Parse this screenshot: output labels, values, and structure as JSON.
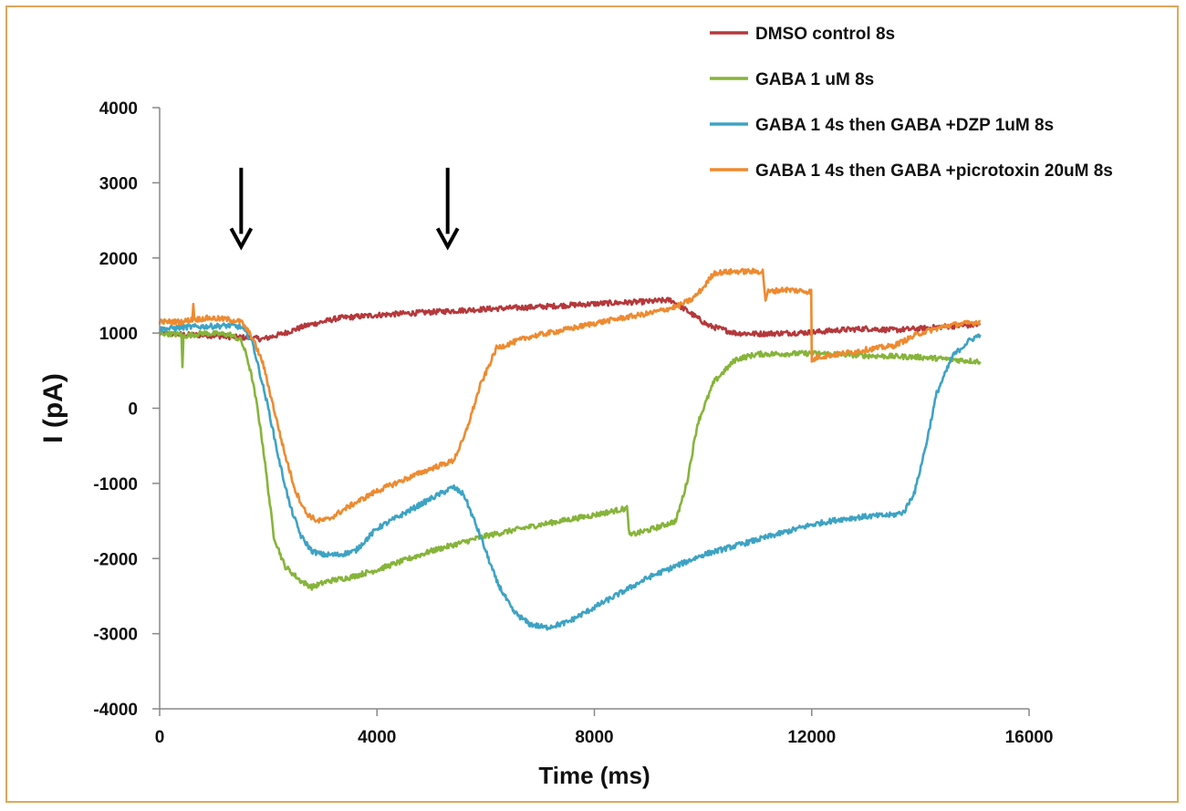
{
  "chart_data": {
    "type": "line",
    "title": "",
    "xlabel": "Time (ms)",
    "ylabel": "I (pA)",
    "xlim": [
      0,
      16000
    ],
    "ylim": [
      -4000,
      4000
    ],
    "x_ticks": [
      0,
      4000,
      8000,
      12000,
      16000
    ],
    "y_ticks": [
      4000,
      3000,
      2000,
      1000,
      0,
      -1000,
      -2000,
      -3000,
      -4000
    ],
    "grid": false,
    "legend_position": "top-right",
    "annotations": [
      {
        "type": "arrow-down",
        "x": 1500,
        "y_from": 3200,
        "y_to": 2150
      },
      {
        "type": "arrow-down",
        "x": 5300,
        "y_from": 3200,
        "y_to": 2150
      }
    ],
    "series": [
      {
        "name": "DMSO control 8s",
        "color": "#b5383b",
        "x": [
          0,
          400,
          900,
          1300,
          1600,
          1900,
          2300,
          2700,
          3300,
          4000,
          5000,
          6000,
          7000,
          8000,
          9000,
          9400,
          9700,
          10100,
          10600,
          11000,
          11500,
          12000,
          12500,
          13000,
          13500,
          14000,
          14500,
          15100
        ],
        "y": [
          1000,
          980,
          970,
          950,
          940,
          920,
          1000,
          1100,
          1200,
          1240,
          1280,
          1320,
          1350,
          1390,
          1420,
          1440,
          1300,
          1100,
          1000,
          990,
          1000,
          1010,
          1040,
          1060,
          1040,
          1060,
          1090,
          1110
        ]
      },
      {
        "name": "GABA 1 uM 8s",
        "color": "#86b43a",
        "x": [
          0,
          400,
          420,
          440,
          800,
          1300,
          1500,
          1600,
          1700,
          1800,
          1900,
          2000,
          2100,
          2300,
          2600,
          2800,
          3100,
          3500,
          4000,
          5000,
          6000,
          7000,
          8000,
          8600,
          8650,
          8700,
          9100,
          9500,
          9700,
          9900,
          10200,
          10600,
          11000,
          12000,
          12500,
          13000,
          14000,
          15100
        ],
        "y": [
          1000,
          980,
          550,
          960,
          1000,
          980,
          900,
          700,
          400,
          0,
          -500,
          -1100,
          -1700,
          -2100,
          -2300,
          -2380,
          -2300,
          -2250,
          -2150,
          -1900,
          -1700,
          -1550,
          -1420,
          -1330,
          -1700,
          -1680,
          -1600,
          -1500,
          -1000,
          -200,
          350,
          650,
          720,
          730,
          720,
          700,
          680,
          620
        ]
      },
      {
        "name": "GABA 1 4s then GABA +DZP 1uM 8s",
        "color": "#3da3c4",
        "x": [
          0,
          500,
          900,
          1300,
          1500,
          1700,
          1800,
          2000,
          2200,
          2400,
          2600,
          2800,
          3000,
          3300,
          3600,
          4000,
          4500,
          5000,
          5400,
          5600,
          5900,
          6200,
          6500,
          6800,
          7100,
          7500,
          8000,
          8500,
          9000,
          10000,
          11000,
          12000,
          12500,
          13000,
          13500,
          13700,
          13900,
          14100,
          14300,
          14600,
          14900,
          15100
        ],
        "y": [
          1050,
          1080,
          1090,
          1100,
          1080,
          900,
          600,
          0,
          -700,
          -1300,
          -1700,
          -1900,
          -1950,
          -1950,
          -1900,
          -1600,
          -1400,
          -1200,
          -1050,
          -1150,
          -1700,
          -2300,
          -2700,
          -2870,
          -2920,
          -2850,
          -2650,
          -2450,
          -2250,
          -1950,
          -1750,
          -1550,
          -1480,
          -1440,
          -1420,
          -1380,
          -1100,
          -500,
          200,
          700,
          900,
          980
        ]
      },
      {
        "name": "GABA 1 4s then GABA +picrotoxin 20uM 8s",
        "color": "#ee8a30",
        "x": [
          0,
          400,
          600,
          620,
          640,
          900,
          1300,
          1500,
          1700,
          1900,
          2100,
          2300,
          2500,
          2700,
          2900,
          3100,
          3500,
          4000,
          4500,
          5000,
          5400,
          5600,
          5900,
          6200,
          6800,
          7500,
          8000,
          8500,
          9000,
          9500,
          9800,
          10000,
          10200,
          10600,
          11100,
          11150,
          11200,
          11500,
          11990,
          12000,
          12100,
          12500,
          13000,
          13500,
          14000,
          14500,
          15100
        ],
        "y": [
          1150,
          1150,
          1180,
          1400,
          1180,
          1200,
          1180,
          1150,
          950,
          600,
          0,
          -600,
          -1100,
          -1400,
          -1500,
          -1480,
          -1300,
          -1100,
          -950,
          -800,
          -700,
          -400,
          300,
          800,
          950,
          1050,
          1130,
          1200,
          1260,
          1350,
          1450,
          1600,
          1800,
          1820,
          1820,
          1450,
          1550,
          1580,
          1550,
          620,
          680,
          720,
          780,
          830,
          1000,
          1100,
          1150
        ]
      }
    ]
  }
}
